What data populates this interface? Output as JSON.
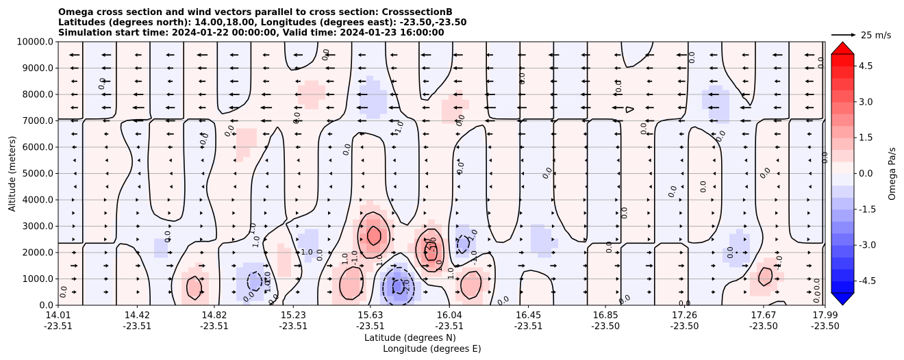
{
  "chart_data": {
    "type": "heatmap",
    "title_lines": [
      "Omega cross section and wind vectors parallel to cross section: CrosssectionB",
      "Latitudes (degrees north): 14.00,18.00, Longitudes (degrees east): -23.50,-23.50",
      "Simulation start time: 2024-01-22 00:00:00, Valid time: 2024-01-23 16:00:00"
    ],
    "xlabel_lines": [
      "Latitude (degrees N)",
      "Longitude (degrees E)"
    ],
    "ylabel": "Altitude (meters)",
    "ylim": [
      0,
      10000
    ],
    "y_ticks": [
      "0.0",
      "1000.0",
      "2000.0",
      "3000.0",
      "4000.0",
      "5000.0",
      "6000.0",
      "7000.0",
      "8000.0",
      "9000.0",
      "10000.0"
    ],
    "x_ticks": [
      {
        "lat": "14.01",
        "lon": "-23.51"
      },
      {
        "lat": "14.42",
        "lon": "-23.51"
      },
      {
        "lat": "14.82",
        "lon": "-23.51"
      },
      {
        "lat": "15.23",
        "lon": "-23.51"
      },
      {
        "lat": "15.63",
        "lon": "-23.51"
      },
      {
        "lat": "16.04",
        "lon": "-23.51"
      },
      {
        "lat": "16.45",
        "lon": "-23.51"
      },
      {
        "lat": "16.85",
        "lon": "-23.50"
      },
      {
        "lat": "17.26",
        "lon": "-23.50"
      },
      {
        "lat": "17.67",
        "lon": "-23.50"
      },
      {
        "lat": "17.99",
        "lon": "-23.50"
      }
    ],
    "grid": "horizontal",
    "colorbar": {
      "label": "Omega Pa/s",
      "min": -5.0,
      "max": 5.0,
      "levels": 20,
      "ticks": [
        "-4.5",
        "-3.0",
        "-1.5",
        "0.0",
        "1.5",
        "3.0",
        "4.5"
      ],
      "extend": "both",
      "cmap": "bwr",
      "low_color": "#0000ff",
      "mid_color": "#ffffff",
      "high_color": "#ff0000"
    },
    "quiver_key": {
      "label": "25 m/s",
      "speed": 25
    },
    "contour_labels": [
      "0.0",
      "1.0",
      "-1.0",
      "2.0",
      "-2.0"
    ],
    "omega_features": [
      {
        "lat": 15.78,
        "alt": 700,
        "value": -2.6
      },
      {
        "lat": 16.1,
        "alt": 2100,
        "value": -1.6
      },
      {
        "lat": 15.05,
        "alt": 900,
        "value": -1.4
      },
      {
        "lat": 17.55,
        "alt": 1900,
        "value": -1.2
      },
      {
        "lat": 15.3,
        "alt": 2300,
        "value": -1.1
      },
      {
        "lat": 15.65,
        "alt": 7700,
        "value": -0.8
      },
      {
        "lat": 16.52,
        "alt": 2300,
        "value": -0.9
      },
      {
        "lat": 17.45,
        "alt": 7600,
        "value": -0.9
      },
      {
        "lat": 14.55,
        "alt": 2300,
        "value": -0.6
      },
      {
        "lat": 15.95,
        "alt": 2000,
        "value": 2.6
      },
      {
        "lat": 15.65,
        "alt": 2600,
        "value": 2.3
      },
      {
        "lat": 15.55,
        "alt": 800,
        "value": 1.6
      },
      {
        "lat": 15.2,
        "alt": 1700,
        "value": 1.2
      },
      {
        "lat": 14.7,
        "alt": 700,
        "value": 1.0
      },
      {
        "lat": 16.15,
        "alt": 1000,
        "value": 1.4
      },
      {
        "lat": 15.3,
        "alt": 8100,
        "value": 1.0
      },
      {
        "lat": 15.0,
        "alt": 6300,
        "value": 0.7
      },
      {
        "lat": 17.68,
        "alt": 1100,
        "value": 1.5
      },
      {
        "lat": 16.05,
        "alt": 7500,
        "value": 0.8
      },
      {
        "lat": 17.05,
        "alt": 8600,
        "value": 0.6
      },
      {
        "lat": 14.35,
        "alt": 5300,
        "value": 0.4
      },
      {
        "lat": 14.8,
        "alt": 4500,
        "value": 0.3
      }
    ],
    "contour_label_positions": [
      {
        "text": "0.0",
        "lat": 14.24,
        "alt": 8400,
        "angle": -80
      },
      {
        "text": "0.0",
        "lat": 14.9,
        "alt": 6600,
        "angle": -60
      },
      {
        "text": "0.0",
        "lat": 14.77,
        "alt": 6300,
        "angle": -70
      },
      {
        "text": "0.0",
        "lat": 15.25,
        "alt": 7100,
        "angle": -80
      },
      {
        "text": "0.0",
        "lat": 15.4,
        "alt": 9500,
        "angle": -80
      },
      {
        "text": "0.0",
        "lat": 15.51,
        "alt": 5900,
        "angle": -75
      },
      {
        "text": "-1.0",
        "lat": 15.78,
        "alt": 6700,
        "angle": -70
      },
      {
        "text": "0.0",
        "lat": 16.1,
        "alt": 7000,
        "angle": -70
      },
      {
        "text": "0.0",
        "lat": 16.1,
        "alt": 5200,
        "angle": -80
      },
      {
        "text": "0.0",
        "lat": 16.42,
        "alt": 8600,
        "angle": -90
      },
      {
        "text": "0.0",
        "lat": 16.55,
        "alt": 5000,
        "angle": -60
      },
      {
        "text": "0.0",
        "lat": 16.92,
        "alt": 8300,
        "angle": -90
      },
      {
        "text": "0.0",
        "lat": 17.05,
        "alt": 6700,
        "angle": -90
      },
      {
        "text": "0.0",
        "lat": 17.3,
        "alt": 9400,
        "angle": -90
      },
      {
        "text": "0.0",
        "lat": 17.2,
        "alt": 4300,
        "angle": -70
      },
      {
        "text": "0.0",
        "lat": 17.36,
        "alt": 4500,
        "angle": -90
      },
      {
        "text": "0.0",
        "lat": 17.45,
        "alt": 6400,
        "angle": -60
      },
      {
        "text": "0.0",
        "lat": 17.68,
        "alt": 5000,
        "angle": -50
      },
      {
        "text": "0.0",
        "lat": 17.97,
        "alt": 9200,
        "angle": -90
      },
      {
        "text": "0.0",
        "lat": 17.99,
        "alt": 5600,
        "angle": -90
      },
      {
        "text": "0.0",
        "lat": 16.95,
        "alt": 3500,
        "angle": -90
      },
      {
        "text": "0.0",
        "lat": 16.87,
        "alt": 2200,
        "angle": -90
      },
      {
        "text": "0.0",
        "lat": 17.5,
        "alt": 2000,
        "angle": -90
      },
      {
        "text": "0.0",
        "lat": 15.37,
        "alt": 1900,
        "angle": -90
      },
      {
        "text": "0.0",
        "lat": 14.58,
        "alt": 2600,
        "angle": -90
      },
      {
        "text": "1.0",
        "lat": 15.3,
        "alt": 2000,
        "angle": 0
      },
      {
        "text": "1.0",
        "lat": 15.02,
        "alt": 2900,
        "angle": -80
      },
      {
        "text": "1.0",
        "lat": 15.04,
        "alt": 2400,
        "angle": -80
      },
      {
        "text": "1.0",
        "lat": 15.68,
        "alt": 1700,
        "angle": -90
      },
      {
        "text": "-1.0",
        "lat": 15.55,
        "alt": 1800,
        "angle": -90
      },
      {
        "text": "-1.0",
        "lat": 15.96,
        "alt": 2300,
        "angle": -90
      },
      {
        "text": "1.0",
        "lat": 15.99,
        "alt": 1500,
        "angle": -90
      },
      {
        "text": "1.0",
        "lat": 16.05,
        "alt": 1200,
        "angle": -90
      },
      {
        "text": "-1.0",
        "lat": 16.17,
        "alt": 1800,
        "angle": -90
      },
      {
        "text": "-1.0",
        "lat": 16.16,
        "alt": 2600,
        "angle": -60
      },
      {
        "text": "2.0",
        "lat": 15.93,
        "alt": 2300,
        "angle": -90
      },
      {
        "text": "-2.0",
        "lat": 15.82,
        "alt": 700,
        "angle": -90
      },
      {
        "text": "-1.0",
        "lat": 15.1,
        "alt": 1000,
        "angle": -90
      },
      {
        "text": "-1.0",
        "lat": 17.75,
        "alt": 1600,
        "angle": -80
      },
      {
        "text": "0.0",
        "lat": 14.04,
        "alt": 500,
        "angle": -80
      },
      {
        "text": "0.0",
        "lat": 15.0,
        "alt": 300,
        "angle": -40
      },
      {
        "text": "0.0",
        "lat": 15.13,
        "alt": 200,
        "angle": -50
      },
      {
        "text": "0.0",
        "lat": 16.32,
        "alt": 150,
        "angle": -30
      },
      {
        "text": "0.0",
        "lat": 16.95,
        "alt": 200,
        "angle": -30
      },
      {
        "text": "0.0",
        "lat": 17.26,
        "alt": 50,
        "angle": 0
      },
      {
        "text": "0.0",
        "lat": 17.95,
        "alt": 300,
        "angle": -80
      },
      {
        "text": "0.0",
        "lat": 17.95,
        "alt": 800,
        "angle": -90
      },
      {
        "text": "1.0",
        "lat": 15.5,
        "alt": 1750,
        "angle": -90
      },
      {
        "text": "1.0",
        "lat": 15.1,
        "alt": 700,
        "angle": -90
      }
    ],
    "wind_u_profile": [
      {
        "alt": 500,
        "u": 4
      },
      {
        "alt": 1000,
        "u": 4
      },
      {
        "alt": 1500,
        "u": 6
      },
      {
        "alt": 2000,
        "u": 4
      },
      {
        "alt": 2500,
        "u": 2
      },
      {
        "alt": 3000,
        "u": 3
      },
      {
        "alt": 3500,
        "u": 2
      },
      {
        "alt": 4000,
        "u": 1
      },
      {
        "alt": 4500,
        "u": -1
      },
      {
        "alt": 5000,
        "u": -1
      },
      {
        "alt": 5500,
        "u": -2
      },
      {
        "alt": 6000,
        "u": -4
      },
      {
        "alt": 6500,
        "u": -6
      },
      {
        "alt": 7000,
        "u": -9
      },
      {
        "alt": 7500,
        "u": -10
      },
      {
        "alt": 8000,
        "u": -9
      },
      {
        "alt": 8500,
        "u": -7
      },
      {
        "alt": 9000,
        "u": -8
      },
      {
        "alt": 9500,
        "u": -9
      }
    ]
  }
}
